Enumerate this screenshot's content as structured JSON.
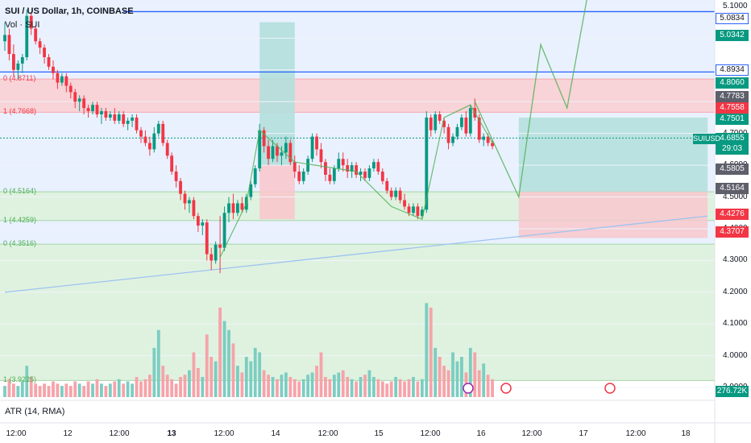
{
  "header": {
    "symbol_title": "SUI / US Dollar, 1h, COINBASE",
    "volume_label": "Vol · SUI",
    "atr_label": "ATR (14, RMA)"
  },
  "colors": {
    "up": "#089981",
    "down": "#f23645",
    "up_vol": "#7ccdc1",
    "down_vol": "#f6a3a9",
    "zone_red": "#f8d3d7",
    "zone_green": "#dff2e0",
    "zone_blue": "#e9f1ff",
    "hline_blue": "#2962ff",
    "projection_green": "#4caf50",
    "trendline": "#9ec3f0"
  },
  "price_axis": {
    "ticks": [
      "5.1000",
      "5.0000",
      "4.9000",
      "4.8000",
      "4.7000",
      "4.6000",
      "4.5000",
      "4.4000",
      "4.3000",
      "4.2000",
      "4.1000",
      "4.0000",
      "3.9000"
    ],
    "tags": [
      {
        "label": "5.0834",
        "kind": "blue-outline"
      },
      {
        "label": "5.0342",
        "kind": "green"
      },
      {
        "label": "4.8934",
        "kind": "blue-outline"
      },
      {
        "label": "4.8060",
        "kind": "green"
      },
      {
        "label": "4.7783",
        "kind": "gray"
      },
      {
        "label": "4.7558",
        "kind": "red"
      },
      {
        "label": "4.7501",
        "kind": "green"
      },
      {
        "label": "4.6855",
        "kind": "green"
      },
      {
        "label": "29:03",
        "kind": "green"
      },
      {
        "label": "4.5805",
        "kind": "gray"
      },
      {
        "label": "4.5164",
        "kind": "gray"
      },
      {
        "label": "4.4276",
        "kind": "red"
      },
      {
        "label": "4.3707",
        "kind": "red"
      },
      {
        "label": "276.72K",
        "kind": "green"
      }
    ],
    "symbol_tag": "SUIUSD"
  },
  "time_axis": {
    "labels": [
      "12:00",
      "12",
      "12:00",
      "13",
      "12:00",
      "14",
      "12:00",
      "15",
      "12:00",
      "16",
      "12:00",
      "17",
      "12:00",
      "18"
    ]
  },
  "fib_labels": [
    {
      "text": "0 (4.8711)",
      "color": "#f23645"
    },
    {
      "text": "1 (4.7668)",
      "color": "#f23645"
    },
    {
      "text": "0 (4.5164)",
      "color": "#4caf50"
    },
    {
      "text": "1 (4.4259)",
      "color": "#4caf50"
    },
    {
      "text": "0 (4.3516)",
      "color": "#4caf50"
    },
    {
      "text": "1 (3.9225)",
      "color": "#4caf50"
    }
  ],
  "chart_data": {
    "type": "candlestick",
    "title": "SUI / US Dollar, 1h, COINBASE",
    "ylim": [
      3.86,
      5.12
    ],
    "x_range_hours": [
      0,
      160
    ],
    "candles": [
      {
        "t": 0,
        "o": 4.99,
        "h": 5.05,
        "l": 4.96,
        "c": 5.01
      },
      {
        "t": 1,
        "o": 5.01,
        "h": 5.03,
        "l": 4.93,
        "c": 4.95
      },
      {
        "t": 2,
        "o": 4.95,
        "h": 4.98,
        "l": 4.88,
        "c": 4.9
      },
      {
        "t": 3,
        "o": 4.9,
        "h": 4.93,
        "l": 4.87,
        "c": 4.92
      },
      {
        "t": 4,
        "o": 4.92,
        "h": 4.95,
        "l": 4.89,
        "c": 4.94
      },
      {
        "t": 5,
        "o": 4.94,
        "h": 5.09,
        "l": 4.93,
        "c": 5.07
      },
      {
        "t": 6,
        "o": 5.07,
        "h": 5.08,
        "l": 5.01,
        "c": 5.03
      },
      {
        "t": 7,
        "o": 5.03,
        "h": 5.04,
        "l": 4.98,
        "c": 4.99
      },
      {
        "t": 8,
        "o": 4.99,
        "h": 5.0,
        "l": 4.95,
        "c": 4.97
      },
      {
        "t": 9,
        "o": 4.97,
        "h": 4.98,
        "l": 4.92,
        "c": 4.94
      },
      {
        "t": 10,
        "o": 4.94,
        "h": 4.95,
        "l": 4.9,
        "c": 4.91
      },
      {
        "t": 11,
        "o": 4.91,
        "h": 4.93,
        "l": 4.87,
        "c": 4.89
      },
      {
        "t": 12,
        "o": 4.89,
        "h": 4.9,
        "l": 4.84,
        "c": 4.86
      },
      {
        "t": 13,
        "o": 4.86,
        "h": 4.89,
        "l": 4.85,
        "c": 4.88
      },
      {
        "t": 14,
        "o": 4.88,
        "h": 4.89,
        "l": 4.83,
        "c": 4.85
      },
      {
        "t": 15,
        "o": 4.85,
        "h": 4.86,
        "l": 4.81,
        "c": 4.83
      },
      {
        "t": 16,
        "o": 4.83,
        "h": 4.84,
        "l": 4.78,
        "c": 4.8
      },
      {
        "t": 17,
        "o": 4.8,
        "h": 4.82,
        "l": 4.77,
        "c": 4.81
      },
      {
        "t": 18,
        "o": 4.81,
        "h": 4.82,
        "l": 4.76,
        "c": 4.78
      },
      {
        "t": 19,
        "o": 4.78,
        "h": 4.79,
        "l": 4.75,
        "c": 4.77
      },
      {
        "t": 20,
        "o": 4.77,
        "h": 4.8,
        "l": 4.76,
        "c": 4.79
      },
      {
        "t": 21,
        "o": 4.79,
        "h": 4.8,
        "l": 4.75,
        "c": 4.76
      },
      {
        "t": 22,
        "o": 4.76,
        "h": 4.78,
        "l": 4.73,
        "c": 4.77
      },
      {
        "t": 23,
        "o": 4.77,
        "h": 4.78,
        "l": 4.74,
        "c": 4.75
      },
      {
        "t": 24,
        "o": 4.75,
        "h": 4.77,
        "l": 4.74,
        "c": 4.76
      },
      {
        "t": 25,
        "o": 4.76,
        "h": 4.78,
        "l": 4.73,
        "c": 4.74
      },
      {
        "t": 26,
        "o": 4.74,
        "h": 4.77,
        "l": 4.73,
        "c": 4.76
      },
      {
        "t": 27,
        "o": 4.76,
        "h": 4.77,
        "l": 4.72,
        "c": 4.73
      },
      {
        "t": 28,
        "o": 4.73,
        "h": 4.75,
        "l": 4.71,
        "c": 4.74
      },
      {
        "t": 29,
        "o": 4.74,
        "h": 4.76,
        "l": 4.72,
        "c": 4.75
      },
      {
        "t": 30,
        "o": 4.75,
        "h": 4.76,
        "l": 4.7,
        "c": 4.71
      },
      {
        "t": 31,
        "o": 4.71,
        "h": 4.72,
        "l": 4.67,
        "c": 4.69
      },
      {
        "t": 32,
        "o": 4.69,
        "h": 4.71,
        "l": 4.66,
        "c": 4.67
      },
      {
        "t": 33,
        "o": 4.67,
        "h": 4.69,
        "l": 4.63,
        "c": 4.65
      },
      {
        "t": 34,
        "o": 4.65,
        "h": 4.72,
        "l": 4.64,
        "c": 4.7
      },
      {
        "t": 35,
        "o": 4.7,
        "h": 4.74,
        "l": 4.69,
        "c": 4.73
      },
      {
        "t": 36,
        "o": 4.73,
        "h": 4.74,
        "l": 4.66,
        "c": 4.67
      },
      {
        "t": 37,
        "o": 4.67,
        "h": 4.68,
        "l": 4.62,
        "c": 4.63
      },
      {
        "t": 38,
        "o": 4.63,
        "h": 4.64,
        "l": 4.57,
        "c": 4.58
      },
      {
        "t": 39,
        "o": 4.58,
        "h": 4.6,
        "l": 4.53,
        "c": 4.55
      },
      {
        "t": 40,
        "o": 4.55,
        "h": 4.56,
        "l": 4.49,
        "c": 4.51
      },
      {
        "t": 41,
        "o": 4.51,
        "h": 4.52,
        "l": 4.46,
        "c": 4.48
      },
      {
        "t": 42,
        "o": 4.48,
        "h": 4.5,
        "l": 4.45,
        "c": 4.49
      },
      {
        "t": 43,
        "o": 4.49,
        "h": 4.5,
        "l": 4.43,
        "c": 4.44
      },
      {
        "t": 44,
        "o": 4.44,
        "h": 4.45,
        "l": 4.39,
        "c": 4.41
      },
      {
        "t": 45,
        "o": 4.41,
        "h": 4.43,
        "l": 4.38,
        "c": 4.42
      },
      {
        "t": 46,
        "o": 4.42,
        "h": 4.43,
        "l": 4.3,
        "c": 4.32
      },
      {
        "t": 47,
        "o": 4.32,
        "h": 4.34,
        "l": 4.27,
        "c": 4.3
      },
      {
        "t": 48,
        "o": 4.3,
        "h": 4.36,
        "l": 4.29,
        "c": 4.35
      },
      {
        "t": 49,
        "o": 4.35,
        "h": 4.44,
        "l": 4.26,
        "c": 4.34
      },
      {
        "t": 50,
        "o": 4.34,
        "h": 4.47,
        "l": 4.33,
        "c": 4.45
      },
      {
        "t": 51,
        "o": 4.45,
        "h": 4.5,
        "l": 4.42,
        "c": 4.48
      },
      {
        "t": 52,
        "o": 4.48,
        "h": 4.51,
        "l": 4.43,
        "c": 4.45
      },
      {
        "t": 53,
        "o": 4.45,
        "h": 4.49,
        "l": 4.44,
        "c": 4.48
      },
      {
        "t": 54,
        "o": 4.48,
        "h": 4.5,
        "l": 4.45,
        "c": 4.46
      },
      {
        "t": 55,
        "o": 4.46,
        "h": 4.51,
        "l": 4.45,
        "c": 4.5
      },
      {
        "t": 56,
        "o": 4.5,
        "h": 4.55,
        "l": 4.49,
        "c": 4.54
      },
      {
        "t": 57,
        "o": 4.54,
        "h": 4.6,
        "l": 4.53,
        "c": 4.59
      },
      {
        "t": 58,
        "o": 4.59,
        "h": 4.73,
        "l": 4.58,
        "c": 4.71
      },
      {
        "t": 59,
        "o": 4.71,
        "h": 4.72,
        "l": 4.64,
        "c": 4.66
      },
      {
        "t": 60,
        "o": 4.66,
        "h": 4.68,
        "l": 4.6,
        "c": 4.62
      },
      {
        "t": 61,
        "o": 4.62,
        "h": 4.68,
        "l": 4.61,
        "c": 4.66
      },
      {
        "t": 62,
        "o": 4.66,
        "h": 4.67,
        "l": 4.61,
        "c": 4.63
      },
      {
        "t": 63,
        "o": 4.63,
        "h": 4.66,
        "l": 4.6,
        "c": 4.64
      },
      {
        "t": 64,
        "o": 4.64,
        "h": 4.69,
        "l": 4.62,
        "c": 4.67
      },
      {
        "t": 65,
        "o": 4.67,
        "h": 4.68,
        "l": 4.6,
        "c": 4.61
      },
      {
        "t": 66,
        "o": 4.61,
        "h": 4.63,
        "l": 4.56,
        "c": 4.58
      },
      {
        "t": 67,
        "o": 4.58,
        "h": 4.6,
        "l": 4.54,
        "c": 4.55
      },
      {
        "t": 68,
        "o": 4.55,
        "h": 4.59,
        "l": 4.54,
        "c": 4.58
      },
      {
        "t": 69,
        "o": 4.58,
        "h": 4.63,
        "l": 4.57,
        "c": 4.62
      },
      {
        "t": 70,
        "o": 4.62,
        "h": 4.7,
        "l": 4.61,
        "c": 4.69
      },
      {
        "t": 71,
        "o": 4.69,
        "h": 4.7,
        "l": 4.63,
        "c": 4.65
      },
      {
        "t": 72,
        "o": 4.65,
        "h": 4.67,
        "l": 4.59,
        "c": 4.61
      },
      {
        "t": 73,
        "o": 4.61,
        "h": 4.62,
        "l": 4.55,
        "c": 4.57
      },
      {
        "t": 74,
        "o": 4.57,
        "h": 4.59,
        "l": 4.54,
        "c": 4.55
      },
      {
        "t": 75,
        "o": 4.55,
        "h": 4.6,
        "l": 4.54,
        "c": 4.59
      },
      {
        "t": 76,
        "o": 4.59,
        "h": 4.64,
        "l": 4.58,
        "c": 4.62
      },
      {
        "t": 77,
        "o": 4.62,
        "h": 4.64,
        "l": 4.58,
        "c": 4.6
      },
      {
        "t": 78,
        "o": 4.6,
        "h": 4.62,
        "l": 4.56,
        "c": 4.58
      },
      {
        "t": 79,
        "o": 4.58,
        "h": 4.61,
        "l": 4.56,
        "c": 4.6
      },
      {
        "t": 80,
        "o": 4.6,
        "h": 4.61,
        "l": 4.56,
        "c": 4.57
      },
      {
        "t": 81,
        "o": 4.57,
        "h": 4.59,
        "l": 4.55,
        "c": 4.58
      },
      {
        "t": 82,
        "o": 4.58,
        "h": 4.59,
        "l": 4.55,
        "c": 4.56
      },
      {
        "t": 83,
        "o": 4.56,
        "h": 4.6,
        "l": 4.55,
        "c": 4.59
      },
      {
        "t": 84,
        "o": 4.59,
        "h": 4.62,
        "l": 4.58,
        "c": 4.61
      },
      {
        "t": 85,
        "o": 4.61,
        "h": 4.62,
        "l": 4.57,
        "c": 4.58
      },
      {
        "t": 86,
        "o": 4.58,
        "h": 4.59,
        "l": 4.54,
        "c": 4.55
      },
      {
        "t": 87,
        "o": 4.55,
        "h": 4.56,
        "l": 4.51,
        "c": 4.52
      },
      {
        "t": 88,
        "o": 4.52,
        "h": 4.53,
        "l": 4.49,
        "c": 4.5
      },
      {
        "t": 89,
        "o": 4.5,
        "h": 4.53,
        "l": 4.49,
        "c": 4.52
      },
      {
        "t": 90,
        "o": 4.52,
        "h": 4.53,
        "l": 4.48,
        "c": 4.49
      },
      {
        "t": 91,
        "o": 4.49,
        "h": 4.51,
        "l": 4.46,
        "c": 4.47
      },
      {
        "t": 92,
        "o": 4.47,
        "h": 4.48,
        "l": 4.44,
        "c": 4.45
      },
      {
        "t": 93,
        "o": 4.45,
        "h": 4.48,
        "l": 4.44,
        "c": 4.47
      },
      {
        "t": 94,
        "o": 4.47,
        "h": 4.48,
        "l": 4.43,
        "c": 4.44
      },
      {
        "t": 95,
        "o": 4.44,
        "h": 4.47,
        "l": 4.43,
        "c": 4.46
      },
      {
        "t": 96,
        "o": 4.46,
        "h": 4.77,
        "l": 4.45,
        "c": 4.75
      },
      {
        "t": 97,
        "o": 4.75,
        "h": 4.76,
        "l": 4.69,
        "c": 4.71
      },
      {
        "t": 98,
        "o": 4.71,
        "h": 4.77,
        "l": 4.7,
        "c": 4.76
      },
      {
        "t": 99,
        "o": 4.76,
        "h": 4.77,
        "l": 4.73,
        "c": 4.74
      },
      {
        "t": 100,
        "o": 4.74,
        "h": 4.75,
        "l": 4.7,
        "c": 4.72
      },
      {
        "t": 101,
        "o": 4.72,
        "h": 4.73,
        "l": 4.65,
        "c": 4.67
      },
      {
        "t": 102,
        "o": 4.67,
        "h": 4.7,
        "l": 4.66,
        "c": 4.69
      },
      {
        "t": 103,
        "o": 4.69,
        "h": 4.73,
        "l": 4.68,
        "c": 4.72
      },
      {
        "t": 104,
        "o": 4.72,
        "h": 4.76,
        "l": 4.71,
        "c": 4.75
      },
      {
        "t": 105,
        "o": 4.75,
        "h": 4.77,
        "l": 4.69,
        "c": 4.7
      },
      {
        "t": 106,
        "o": 4.7,
        "h": 4.79,
        "l": 4.69,
        "c": 4.78
      },
      {
        "t": 107,
        "o": 4.78,
        "h": 4.81,
        "l": 4.74,
        "c": 4.75
      },
      {
        "t": 108,
        "o": 4.75,
        "h": 4.76,
        "l": 4.67,
        "c": 4.68
      },
      {
        "t": 109,
        "o": 4.68,
        "h": 4.7,
        "l": 4.66,
        "c": 4.69
      },
      {
        "t": 110,
        "o": 4.69,
        "h": 4.7,
        "l": 4.66,
        "c": 4.67
      },
      {
        "t": 111,
        "o": 4.67,
        "h": 4.68,
        "l": 4.65,
        "c": 4.66
      }
    ],
    "volume": [
      5,
      8,
      6,
      5,
      7,
      14,
      9,
      6,
      5,
      6,
      5,
      7,
      6,
      5,
      6,
      5,
      7,
      6,
      5,
      7,
      6,
      8,
      6,
      5,
      6,
      7,
      8,
      6,
      7,
      6,
      9,
      7,
      8,
      10,
      22,
      30,
      14,
      10,
      8,
      6,
      9,
      10,
      12,
      20,
      13,
      9,
      28,
      18,
      16,
      40,
      34,
      30,
      24,
      14,
      11,
      18,
      16,
      22,
      20,
      12,
      10,
      9,
      8,
      10,
      11,
      9,
      8,
      7,
      8,
      10,
      11,
      14,
      20,
      9,
      8,
      10,
      11,
      12,
      9,
      8,
      7,
      9,
      10,
      12,
      9,
      8,
      7,
      6,
      7,
      9,
      8,
      7,
      8,
      9,
      7,
      8,
      42,
      40,
      22,
      18,
      14,
      12,
      20,
      16,
      18,
      11,
      22,
      20,
      12,
      15,
      10,
      8
    ],
    "volume_ylim": [
      0,
      45
    ],
    "horizontal_levels": [
      5.0834,
      4.8934
    ],
    "fib_zones": [
      {
        "top": 4.8711,
        "bottom": 4.7668,
        "color": "red"
      },
      {
        "top": 4.5164,
        "bottom": 4.4259,
        "color": "green"
      },
      {
        "top": 4.3516,
        "bottom": 3.9225,
        "color": "green"
      }
    ],
    "projection_path": [
      [
        107,
        4.8
      ],
      [
        117,
        4.5
      ],
      [
        122,
        4.98
      ],
      [
        128,
        4.78
      ],
      [
        133,
        5.16
      ]
    ],
    "pattern_path": [
      [
        49,
        4.31
      ],
      [
        55,
        4.48
      ],
      [
        58,
        4.71
      ],
      [
        66,
        4.61
      ],
      [
        80,
        4.58
      ],
      [
        88,
        4.47
      ],
      [
        95,
        4.43
      ],
      [
        100,
        4.75
      ],
      [
        106,
        4.79
      ],
      [
        111,
        4.67
      ]
    ],
    "trendline": [
      [
        0,
        4.2
      ],
      [
        160,
        4.44
      ]
    ],
    "position_tool": {
      "t_start": 117,
      "t_end": 160,
      "target": 4.7501,
      "entry": 4.5164,
      "stop": 4.3707
    },
    "last_price": 4.6855
  }
}
